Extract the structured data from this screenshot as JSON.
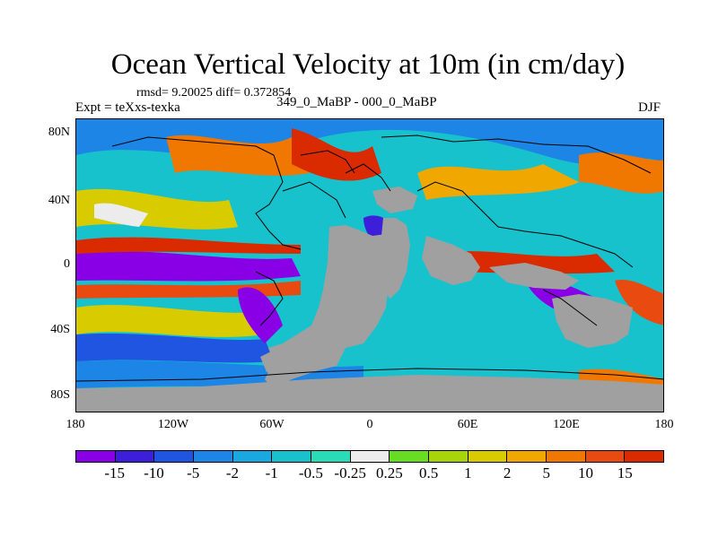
{
  "title": "Ocean Vertical Velocity at 10m (in cm/day)",
  "stats": "rmsd= 9.20025 diff= 0.372854",
  "expt": "Expt = teXxs-texka",
  "case": "349_0_MaBP - 000_0_MaBP",
  "season": "DJF",
  "yaxis": [
    "80N",
    "40N",
    "0",
    "40S",
    "80S"
  ],
  "xaxis": [
    "180",
    "120W",
    "60W",
    "0",
    "60E",
    "120E",
    "180"
  ],
  "colorbar": {
    "labels": [
      "-15",
      "-10",
      "-5",
      "-2",
      "-1",
      "-0.5",
      "-0.25",
      "0.25",
      "0.5",
      "1",
      "2",
      "5",
      "10",
      "15"
    ],
    "colors": [
      "#8a00e6",
      "#3d1fd9",
      "#1f55e0",
      "#1c85e6",
      "#1aa8e0",
      "#18c2cc",
      "#2adbb8",
      "#ececec",
      "#66dd22",
      "#a8d40a",
      "#d8cc00",
      "#f0a800",
      "#f07800",
      "#e84a10",
      "#d92a00"
    ]
  },
  "land_color": "#a0a0a0"
}
